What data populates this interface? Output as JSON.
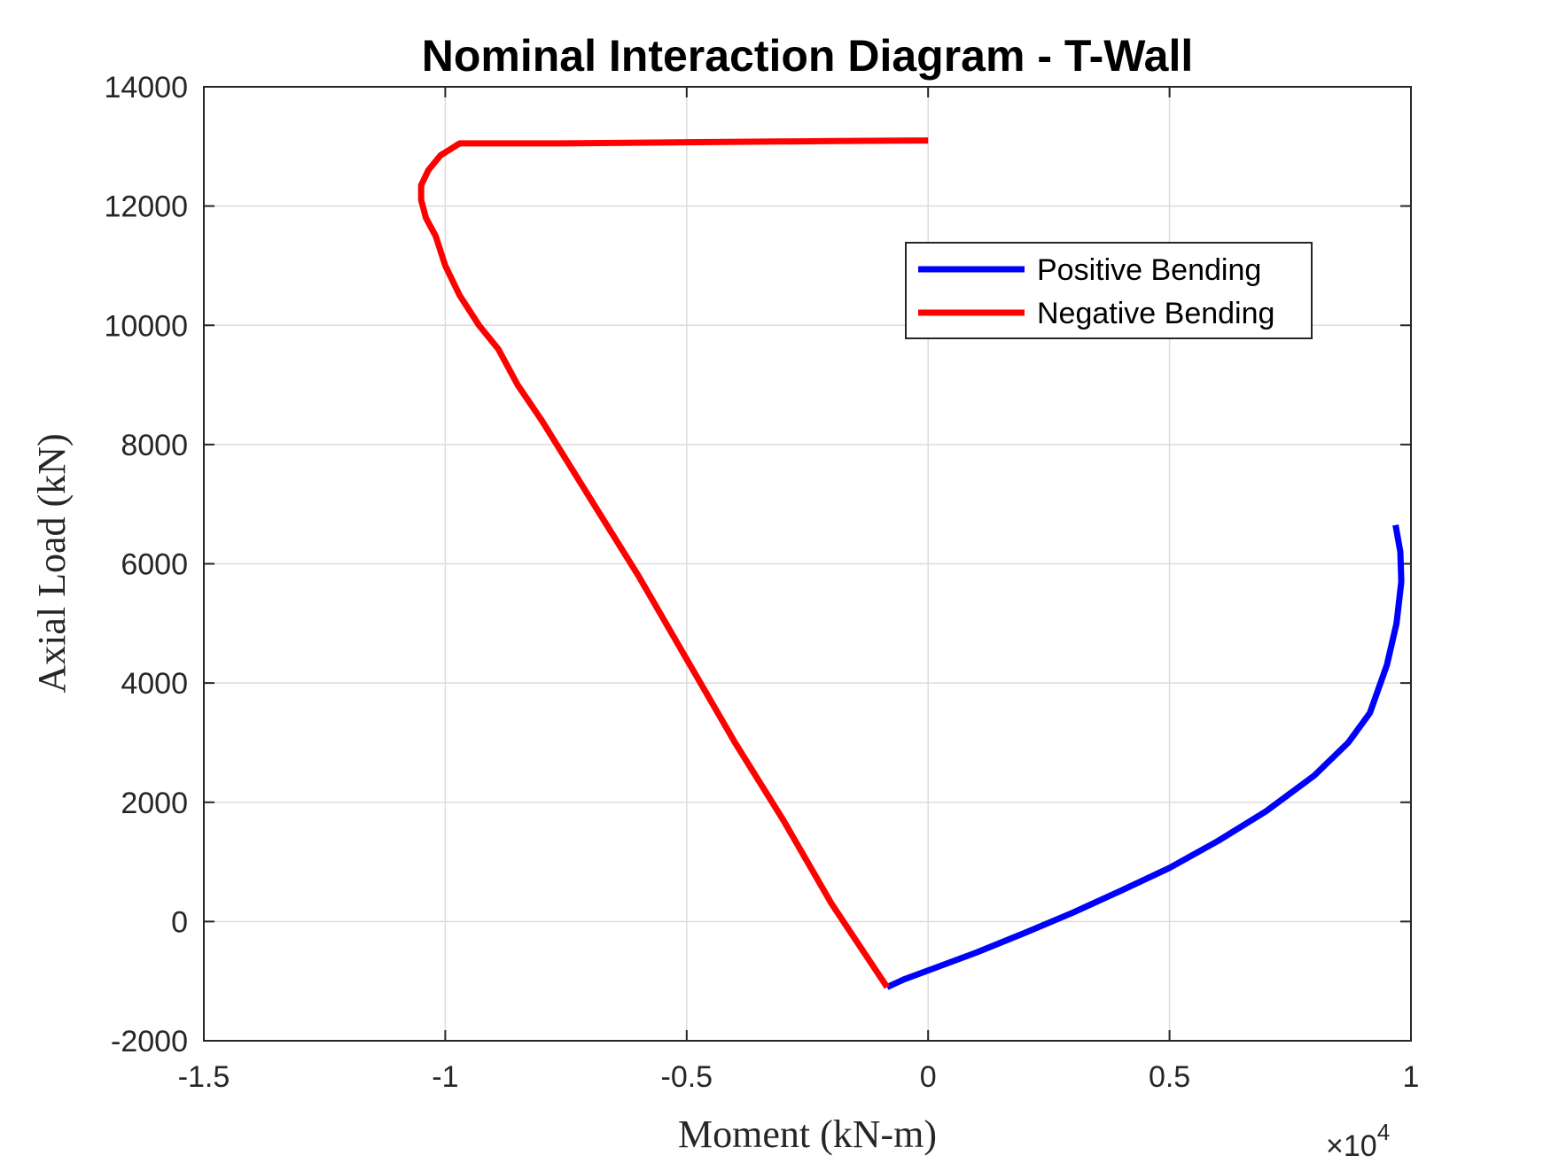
{
  "chart_data": {
    "type": "line",
    "title": "Nominal Interaction Diagram - T-Wall",
    "xlabel": "Moment (kN-m)",
    "ylabel": "Axial Load (kN)",
    "xlim": [
      -15000,
      10000
    ],
    "ylim": [
      -2000,
      14000
    ],
    "x_exponent_label": "×10",
    "x_exponent_power": "4",
    "x_ticks": [
      -15000,
      -10000,
      -5000,
      0,
      5000,
      10000
    ],
    "x_tick_labels": [
      "-1.5",
      "-1",
      "-0.5",
      "0",
      "0.5",
      "1"
    ],
    "y_ticks": [
      -2000,
      0,
      2000,
      4000,
      6000,
      8000,
      10000,
      12000,
      14000
    ],
    "y_tick_labels": [
      "-2000",
      "0",
      "2000",
      "4000",
      "6000",
      "8000",
      "10000",
      "12000",
      "14000"
    ],
    "grid": true,
    "legend_position": "top-right",
    "series": [
      {
        "name": "Positive Bending",
        "color": "#0000ff",
        "points": [
          [
            -850,
            -1100
          ],
          [
            -500,
            -970
          ],
          [
            0,
            -820
          ],
          [
            1000,
            -520
          ],
          [
            2000,
            -190
          ],
          [
            3000,
            150
          ],
          [
            4000,
            520
          ],
          [
            5000,
            900
          ],
          [
            6000,
            1350
          ],
          [
            7000,
            1850
          ],
          [
            8000,
            2450
          ],
          [
            8700,
            3000
          ],
          [
            9150,
            3500
          ],
          [
            9500,
            4300
          ],
          [
            9700,
            5000
          ],
          [
            9800,
            5700
          ],
          [
            9780,
            6200
          ],
          [
            9680,
            6650
          ]
        ]
      },
      {
        "name": "Negative Bending",
        "color": "#ff0000",
        "points": [
          [
            -850,
            -1100
          ],
          [
            -2000,
            300
          ],
          [
            -3000,
            1700
          ],
          [
            -4000,
            3000
          ],
          [
            -5000,
            4400
          ],
          [
            -6000,
            5800
          ],
          [
            -7000,
            7100
          ],
          [
            -8000,
            8400
          ],
          [
            -8500,
            9000
          ],
          [
            -8900,
            9600
          ],
          [
            -9300,
            10000
          ],
          [
            -9700,
            10500
          ],
          [
            -10000,
            11000
          ],
          [
            -10200,
            11500
          ],
          [
            -10400,
            11800
          ],
          [
            -10500,
            12100
          ],
          [
            -10500,
            12350
          ],
          [
            -10350,
            12600
          ],
          [
            -10100,
            12850
          ],
          [
            -9700,
            13050
          ],
          [
            -7600,
            13050
          ],
          [
            -5000,
            13070
          ],
          [
            -2000,
            13090
          ],
          [
            0,
            13100
          ]
        ]
      }
    ]
  }
}
